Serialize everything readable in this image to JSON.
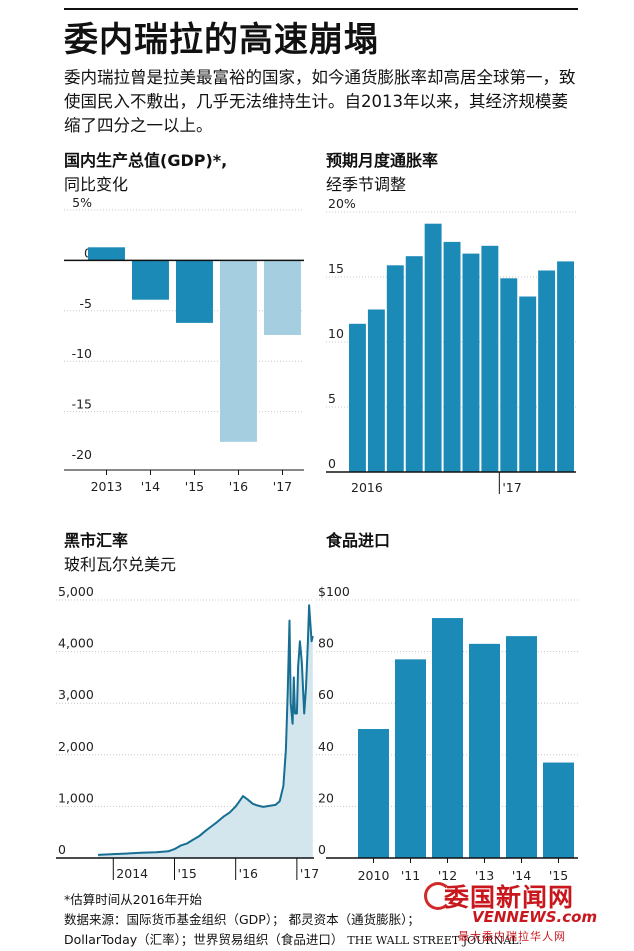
{
  "header": {
    "title": "委内瑞拉的高速崩塌",
    "subtitle": "委内瑞拉曾是拉美最富裕的国家，如今通货膨胀率却高居全球第一，致使国民入不敷出，几乎无法维持生计。自2013年以来，其经济规模萎缩了四分之一以上。"
  },
  "footer": {
    "note": "*估算时间从2016年开始",
    "source_line1": "数据来源：国际货币基金组织（GDP）；  都灵资本（通货膨胀）；",
    "source_line2": "DollarToday（汇率）；世界贸易组织（食品进口）",
    "publisher": "THE WALL STREET JOURNAL.",
    "watermark_logo": "委国新闻网",
    "watermark_url": "VENNEWS.com",
    "watermark_tag": "最大委内瑞拉华人网"
  },
  "colors": {
    "dark": "#1c8ab7",
    "light": "#a5cfe0",
    "area": "#d3e6ee",
    "line": "#176e93"
  },
  "chart_data": [
    {
      "id": "gdp",
      "type": "bar",
      "title": "国内生产总值(GDP)*,",
      "subtitle": "同比变化",
      "categories": [
        "2013",
        "'14",
        "'15",
        "'16",
        "'17"
      ],
      "values": [
        1.3,
        -3.9,
        -6.2,
        -18.0,
        -7.4
      ],
      "estimated": [
        false,
        false,
        false,
        true,
        true
      ],
      "yticks": [
        "5%",
        "0",
        "-5",
        "-10",
        "-15",
        "-20"
      ],
      "ytick_values": [
        5,
        0,
        -5,
        -10,
        -15,
        -20
      ],
      "ylim": [
        -20,
        5
      ]
    },
    {
      "id": "inflation",
      "type": "bar",
      "title": "预期月度通胀率",
      "subtitle": "经季节调整",
      "values": [
        11.4,
        12.5,
        15.9,
        16.6,
        19.1,
        17.7,
        16.8,
        17.4,
        14.9,
        13.5,
        15.5,
        16.2
      ],
      "xticks": [
        "2016",
        "'17"
      ],
      "yticks": [
        "20%",
        "15",
        "10",
        "5",
        "0"
      ],
      "ytick_values": [
        20,
        15,
        10,
        5,
        0
      ],
      "ylim": [
        0,
        20
      ]
    },
    {
      "id": "fx",
      "type": "area",
      "title": "黑市汇率",
      "subtitle": "玻利瓦尔兑美元",
      "x": [
        2013.75,
        2014.0,
        2014.2,
        2014.45,
        2014.7,
        2014.9,
        2015.0,
        2015.1,
        2015.2,
        2015.3,
        2015.4,
        2015.5,
        2015.6,
        2015.7,
        2015.8,
        2015.9,
        2016.0,
        2016.05,
        2016.12,
        2016.2,
        2016.28,
        2016.35,
        2016.45,
        2016.55,
        2016.65,
        2016.72,
        2016.78,
        2016.82,
        2016.85,
        2016.88,
        2016.9,
        2016.93,
        2016.95,
        2016.97,
        2017.0,
        2017.02,
        2017.05,
        2017.08,
        2017.12,
        2017.15,
        2017.18,
        2017.2,
        2017.24,
        2017.26
      ],
      "values": [
        60,
        75,
        85,
        100,
        110,
        130,
        173,
        240,
        280,
        350,
        420,
        520,
        610,
        700,
        800,
        880,
        1000,
        1080,
        1200,
        1130,
        1050,
        1020,
        990,
        1010,
        1030,
        1100,
        1400,
        2100,
        3200,
        4600,
        3000,
        2600,
        3500,
        2800,
        2800,
        3700,
        4200,
        3800,
        2800,
        3300,
        4200,
        4900,
        4200,
        4300
      ],
      "xticks": [
        "2014",
        "'15",
        "'16",
        "'17"
      ],
      "xtick_values": [
        2014,
        2015,
        2016,
        2017
      ],
      "yticks": [
        "5,000",
        "4,000",
        "3,000",
        "2,000",
        "1,000",
        "0"
      ],
      "ytick_values": [
        5000,
        4000,
        3000,
        2000,
        1000,
        0
      ],
      "xlim": [
        2013.75,
        2017.28
      ],
      "ylim": [
        0,
        5000
      ]
    },
    {
      "id": "food",
      "type": "bar",
      "title": "食品进口",
      "subtitle": "",
      "categories": [
        "2010",
        "'11",
        "'12",
        "'13",
        "'14",
        "'15"
      ],
      "values": [
        50,
        77,
        93,
        83,
        86,
        37
      ],
      "yticks": [
        "$100",
        "80",
        "60",
        "40",
        "20",
        "0"
      ],
      "ytick_values": [
        100,
        80,
        60,
        40,
        20,
        0
      ],
      "ylim": [
        0,
        100
      ]
    }
  ]
}
